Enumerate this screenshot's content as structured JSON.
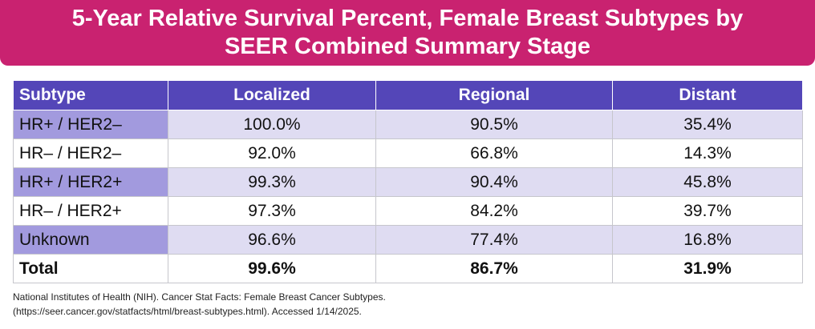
{
  "title": {
    "line1": "5-Year Relative Survival Percent, Female Breast Subtypes by",
    "line2": "SEER Combined Summary Stage"
  },
  "table": {
    "headers": [
      "Subtype",
      "Localized",
      "Regional",
      "Distant"
    ],
    "rows": [
      [
        "HR+ / HER2–",
        "100.0%",
        "90.5%",
        "35.4%"
      ],
      [
        "HR– / HER2–",
        "92.0%",
        "66.8%",
        "14.3%"
      ],
      [
        "HR+ / HER2+",
        "99.3%",
        "90.4%",
        "45.8%"
      ],
      [
        "HR– / HER2+",
        "97.3%",
        "84.2%",
        "39.7%"
      ],
      [
        "Unknown",
        "96.6%",
        "77.4%",
        "16.8%"
      ]
    ],
    "total": [
      "Total",
      "99.6%",
      "86.7%",
      "31.9%"
    ]
  },
  "source": {
    "line1": "National Institutes of Health (NIH). Cancer Stat Facts: Female Breast Cancer Subtypes.",
    "line2": "(https://seer.cancer.gov/statfacts/html/breast-subtypes.html). Accessed 1/14/2025."
  },
  "colors": {
    "banner": "#c92270",
    "header": "#5446b8",
    "subtype_shade": "#a29ade",
    "row_shade": "#dfdcf2"
  }
}
